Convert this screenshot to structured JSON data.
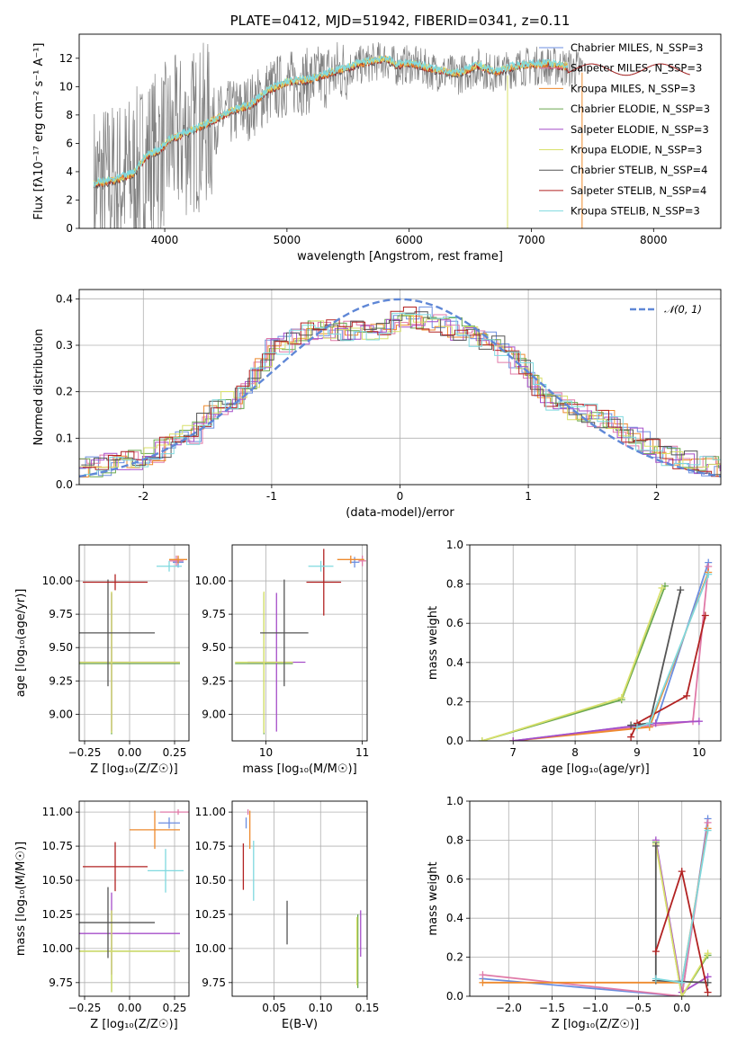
{
  "colors": {
    "chabrier_miles": "#6b8ee0",
    "salpeter_miles": "#e07aa8",
    "kroupa_miles": "#ee8a2e",
    "chabrier_elodie": "#6aa84f",
    "salpeter_elodie": "#a64fc9",
    "kroupa_elodie": "#d8e06a",
    "chabrier_stelib": "#555555",
    "salpeter_stelib": "#b22222",
    "kroupa_stelib": "#7fd9df",
    "gaussian": "#5f87d6",
    "grid": "#b0b0b0"
  },
  "chart_data": [
    {
      "id": "spectrum",
      "type": "line",
      "title": "PLATE=0412, MJD=51942, FIBERID=0341, z=0.11",
      "xlabel": "wavelength [Angstrom, rest frame]",
      "ylabel": "Flux [fλ10⁻¹⁷ erg cm⁻² s⁻¹ A⁻¹]",
      "xlim": [
        3300,
        8550
      ],
      "ylim": [
        0,
        13.7
      ],
      "xticks": [
        4000,
        5000,
        6000,
        7000,
        8000
      ],
      "yticks": [
        0,
        2,
        4,
        6,
        8,
        10,
        12
      ],
      "grid": false,
      "legend_placement": "upper-right",
      "continuum": {
        "x": [
          3420,
          3600,
          3750,
          3850,
          3950,
          4050,
          4200,
          4350,
          4500,
          4700,
          4860,
          5000,
          5200,
          5400,
          5600,
          5800,
          5900,
          6000,
          6200,
          6400,
          6560,
          6700,
          6900,
          7100,
          7300
        ],
        "y": [
          3.0,
          3.3,
          3.8,
          5.0,
          5.4,
          6.2,
          6.7,
          7.3,
          8.0,
          8.6,
          9.7,
          10.2,
          10.4,
          11.0,
          11.5,
          11.9,
          11.4,
          11.6,
          11.1,
          10.8,
          11.4,
          10.9,
          11.4,
          11.5,
          11.3
        ]
      },
      "series": [
        {
          "name": "Chabrier MILES, N_SSP=3",
          "color_key": "chabrier_miles"
        },
        {
          "name": "Salpeter MILES, N_SSP=3",
          "color_key": "salpeter_miles"
        },
        {
          "name": "Kroupa MILES, N_SSP=3",
          "color_key": "kroupa_miles"
        },
        {
          "name": "Chabrier ELODIE, N_SSP=3",
          "color_key": "chabrier_elodie"
        },
        {
          "name": "Salpeter ELODIE, N_SSP=3",
          "color_key": "salpeter_elodie"
        },
        {
          "name": "Kroupa ELODIE, N_SSP=3",
          "color_key": "kroupa_elodie"
        },
        {
          "name": "Chabrier STELIB, N_SSP=4",
          "color_key": "chabrier_stelib"
        },
        {
          "name": "Salpeter STELIB, N_SSP=4",
          "color_key": "salpeter_stelib"
        },
        {
          "name": "Kroupa STELIB, N_SSP=3",
          "color_key": "kroupa_stelib"
        }
      ]
    },
    {
      "id": "residuals",
      "type": "line",
      "xlabel": "(data-model)/error",
      "ylabel": "Normed distribution",
      "xlim": [
        -2.5,
        2.5
      ],
      "ylim": [
        0,
        0.42
      ],
      "xticks": [
        -2,
        -1,
        0,
        1,
        2
      ],
      "yticks": [
        0.0,
        0.1,
        0.2,
        0.3,
        0.4
      ],
      "grid": true,
      "legend_placement": "upper-right",
      "gaussian_label": "𝒩(0, 1)",
      "histogram_bins": [
        -2.5,
        2.5
      ],
      "histogram_envelope_x": [
        -2.5,
        -2.2,
        -2.0,
        -1.8,
        -1.6,
        -1.4,
        -1.2,
        -1.0,
        -0.8,
        -0.6,
        -0.4,
        -0.2,
        0.0,
        0.2,
        0.4,
        0.6,
        0.8,
        1.0,
        1.2,
        1.4,
        1.6,
        1.8,
        2.0,
        2.2,
        2.5
      ],
      "histogram_envelope_y": [
        0.03,
        0.05,
        0.06,
        0.08,
        0.11,
        0.17,
        0.19,
        0.29,
        0.32,
        0.34,
        0.33,
        0.33,
        0.36,
        0.36,
        0.34,
        0.32,
        0.29,
        0.24,
        0.18,
        0.16,
        0.14,
        0.11,
        0.07,
        0.05,
        0.04
      ]
    },
    {
      "id": "age_vs_Z",
      "type": "scatter",
      "xlabel": "Z [log₁₀(Z/Z☉)]",
      "ylabel": "age  [log₁₀(age/yr)]",
      "xlim": [
        -0.28,
        0.33
      ],
      "ylim": [
        8.8,
        10.27
      ],
      "xticks": [
        -0.25,
        0.0,
        0.25
      ],
      "xticklabels": [
        "−0.25",
        "0.00",
        "0.25"
      ],
      "yticks": [
        9.0,
        9.25,
        9.5,
        9.75,
        10.0
      ],
      "yticklabels": [
        "9.00",
        "9.25",
        "9.50",
        "9.75",
        "10.00"
      ],
      "grid": true,
      "points": [
        {
          "key": "chabrier_miles",
          "x": 0.27,
          "y": 10.14,
          "xe": 0.03,
          "ye": 0.04
        },
        {
          "key": "salpeter_miles",
          "x": 0.26,
          "y": 10.15,
          "xe": 0.04,
          "ye": 0.04
        },
        {
          "key": "kroupa_miles",
          "x": 0.27,
          "y": 10.16,
          "xe": 0.05,
          "ye": 0.03
        },
        {
          "key": "chabrier_elodie",
          "x": -0.1,
          "y": 9.38,
          "xe": 0.38,
          "ye": 0.53
        },
        {
          "key": "salpeter_elodie",
          "x": -0.1,
          "y": 9.39,
          "xe": 0.38,
          "ye": 0.52
        },
        {
          "key": "kroupa_elodie",
          "x": -0.1,
          "y": 9.39,
          "xe": 0.38,
          "ye": 0.53
        },
        {
          "key": "chabrier_stelib",
          "x": -0.12,
          "y": 9.61,
          "xe": 0.26,
          "ye": 0.4
        },
        {
          "key": "salpeter_stelib",
          "x": -0.08,
          "y": 9.99,
          "xe": 0.18,
          "ye": 0.06
        },
        {
          "key": "kroupa_stelib",
          "x": 0.22,
          "y": 10.11,
          "xe": 0.07,
          "ye": 0.04
        }
      ]
    },
    {
      "id": "age_vs_mass",
      "type": "scatter",
      "xlabel": "mass [log₁₀(M/M☉)]",
      "xlim": [
        9.65,
        11.05
      ],
      "ylim": [
        8.8,
        10.27
      ],
      "xticks": [
        10,
        11
      ],
      "yticks": [
        9.0,
        9.25,
        9.5,
        9.75,
        10.0
      ],
      "yticklabels": [
        "9.00",
        "9.25",
        "9.50",
        "9.75",
        "10.00"
      ],
      "grid": true,
      "points": [
        {
          "key": "chabrier_miles",
          "x": 10.92,
          "y": 10.14,
          "xe": 0.05,
          "ye": 0.04
        },
        {
          "key": "salpeter_miles",
          "x": 11.0,
          "y": 10.15,
          "xe": 0.04,
          "ye": 0.04
        },
        {
          "key": "kroupa_miles",
          "x": 10.88,
          "y": 10.16,
          "xe": 0.14,
          "ye": 0.03
        },
        {
          "key": "chabrier_elodie",
          "x": 9.98,
          "y": 9.38,
          "xe": 0.3,
          "ye": 0.53
        },
        {
          "key": "salpeter_elodie",
          "x": 10.11,
          "y": 9.39,
          "xe": 0.3,
          "ye": 0.52
        },
        {
          "key": "kroupa_elodie",
          "x": 9.98,
          "y": 9.39,
          "xe": 0.3,
          "ye": 0.53
        },
        {
          "key": "chabrier_stelib",
          "x": 10.19,
          "y": 9.61,
          "xe": 0.25,
          "ye": 0.4
        },
        {
          "key": "salpeter_stelib",
          "x": 10.6,
          "y": 9.99,
          "xe": 0.18,
          "ye": 0.25
        },
        {
          "key": "kroupa_stelib",
          "x": 10.57,
          "y": 10.11,
          "xe": 0.13,
          "ye": 0.04
        }
      ]
    },
    {
      "id": "mass_weight_vs_age",
      "type": "line",
      "xlabel": "age  [log₁₀(age/yr)]",
      "ylabel": "mass weight",
      "xlim": [
        6.3,
        10.35
      ],
      "ylim": [
        0,
        1.0
      ],
      "xticks": [
        7,
        8,
        9,
        10
      ],
      "yticks": [
        0.0,
        0.2,
        0.4,
        0.6,
        0.8,
        1.0
      ],
      "grid": true,
      "series": [
        {
          "key": "chabrier_miles",
          "x": [
            7.0,
            9.3,
            10.15
          ],
          "y": [
            0.0,
            0.09,
            0.91
          ]
        },
        {
          "key": "salpeter_miles",
          "x": [
            7.0,
            9.9,
            10.15
          ],
          "y": [
            0.0,
            0.1,
            0.89
          ]
        },
        {
          "key": "kroupa_miles",
          "x": [
            7.0,
            9.2,
            10.15
          ],
          "y": [
            0.0,
            0.07,
            0.86
          ]
        },
        {
          "key": "chabrier_elodie",
          "x": [
            6.5,
            8.75,
            9.45
          ],
          "y": [
            0.0,
            0.21,
            0.79
          ]
        },
        {
          "key": "salpeter_elodie",
          "x": [
            7.0,
            9.3,
            10.0
          ],
          "y": [
            0.0,
            0.09,
            0.1
          ]
        },
        {
          "key": "kroupa_elodie",
          "x": [
            6.5,
            8.75,
            9.4
          ],
          "y": [
            0.0,
            0.22,
            0.78
          ]
        },
        {
          "key": "chabrier_stelib",
          "x": [
            8.9,
            9.2,
            9.7
          ],
          "y": [
            0.08,
            0.09,
            0.77
          ]
        },
        {
          "key": "salpeter_stelib",
          "x": [
            8.9,
            9.0,
            9.8,
            10.1
          ],
          "y": [
            0.02,
            0.09,
            0.23,
            0.64
          ]
        },
        {
          "key": "kroupa_stelib",
          "x": [
            9.0,
            9.2,
            10.15
          ],
          "y": [
            0.07,
            0.09,
            0.85
          ]
        }
      ]
    },
    {
      "id": "mass_vs_Z",
      "type": "scatter",
      "xlabel": "Z [log₁₀(Z/Z☉)]",
      "ylabel": "mass [log₁₀(M/M☉)]",
      "xlim": [
        -0.28,
        0.33
      ],
      "ylim": [
        9.65,
        11.08
      ],
      "xticks": [
        -0.25,
        0.0,
        0.25
      ],
      "xticklabels": [
        "−0.25",
        "0.00",
        "0.25"
      ],
      "yticks": [
        9.75,
        10.0,
        10.25,
        10.5,
        10.75,
        11.0
      ],
      "yticklabels": [
        "9.75",
        "10.00",
        "10.25",
        "10.50",
        "10.75",
        "11.00"
      ],
      "grid": true,
      "points": [
        {
          "key": "chabrier_miles",
          "x": 0.22,
          "y": 10.92,
          "xe": 0.06,
          "ye": 0.04
        },
        {
          "key": "salpeter_miles",
          "x": 0.27,
          "y": 11.0,
          "xe": 0.1,
          "ye": 0.02
        },
        {
          "key": "kroupa_miles",
          "x": 0.14,
          "y": 10.87,
          "xe": 0.14,
          "ye": 0.14
        },
        {
          "key": "chabrier_elodie",
          "x": -0.1,
          "y": 9.98,
          "xe": 0.38,
          "ye": 0.3
        },
        {
          "key": "salpeter_elodie",
          "x": -0.1,
          "y": 10.11,
          "xe": 0.38,
          "ye": 0.3
        },
        {
          "key": "kroupa_elodie",
          "x": -0.1,
          "y": 9.98,
          "xe": 0.38,
          "ye": 0.3
        },
        {
          "key": "chabrier_stelib",
          "x": -0.12,
          "y": 10.19,
          "xe": 0.26,
          "ye": 0.26
        },
        {
          "key": "salpeter_stelib",
          "x": -0.08,
          "y": 10.6,
          "xe": 0.18,
          "ye": 0.18
        },
        {
          "key": "kroupa_stelib",
          "x": 0.2,
          "y": 10.57,
          "xe": 0.1,
          "ye": 0.16
        }
      ]
    },
    {
      "id": "mass_vs_EBV",
      "type": "scatter",
      "xlabel": "E(B-V)",
      "xlim": [
        0.005,
        0.15
      ],
      "ylim": [
        9.65,
        11.08
      ],
      "xticks": [
        0.05,
        0.1,
        0.15
      ],
      "xticklabels": [
        "0.05",
        "0.10",
        "0.15"
      ],
      "yticks": [
        9.75,
        10.0,
        10.25,
        10.5,
        10.75,
        11.0
      ],
      "yticklabels": [
        "9.75",
        "10.00",
        "10.25",
        "10.50",
        "10.75",
        "11.00"
      ],
      "grid": true,
      "points": [
        {
          "key": "chabrier_miles",
          "x": 0.02,
          "y": 10.92,
          "xe": 0.0,
          "ye": 0.04
        },
        {
          "key": "salpeter_miles",
          "x": 0.022,
          "y": 11.0,
          "xe": 0.0,
          "ye": 0.02
        },
        {
          "key": "kroupa_miles",
          "x": 0.024,
          "y": 10.87,
          "xe": 0.0,
          "ye": 0.14
        },
        {
          "key": "chabrier_elodie",
          "x": 0.14,
          "y": 9.98,
          "xe": 0.0,
          "ye": 0.27
        },
        {
          "key": "salpeter_elodie",
          "x": 0.143,
          "y": 10.11,
          "xe": 0.0,
          "ye": 0.17
        },
        {
          "key": "kroupa_elodie",
          "x": 0.139,
          "y": 9.98,
          "xe": 0.0,
          "ye": 0.25
        },
        {
          "key": "chabrier_stelib",
          "x": 0.064,
          "y": 10.19,
          "xe": 0.0,
          "ye": 0.16
        },
        {
          "key": "salpeter_stelib",
          "x": 0.017,
          "y": 10.6,
          "xe": 0.0,
          "ye": 0.17
        },
        {
          "key": "kroupa_stelib",
          "x": 0.028,
          "y": 10.57,
          "xe": 0.0,
          "ye": 0.22
        }
      ]
    },
    {
      "id": "mass_weight_vs_Z",
      "type": "line",
      "xlabel": "Z [log₁₀(Z/Z☉)]",
      "ylabel": "mass weight",
      "xlim": [
        -2.45,
        0.45
      ],
      "ylim": [
        0,
        1.0
      ],
      "xticks": [
        -2.0,
        -1.5,
        -1.0,
        -0.5,
        0.0
      ],
      "xticklabels": [
        "−2.0",
        "−1.5",
        "−1.0",
        "−0.5",
        "0.0"
      ],
      "yticks": [
        0.0,
        0.2,
        0.4,
        0.6,
        0.8,
        1.0
      ],
      "grid": true,
      "series": [
        {
          "key": "chabrier_miles",
          "x": [
            -2.3,
            0.0,
            0.3
          ],
          "y": [
            0.09,
            0.0,
            0.91
          ]
        },
        {
          "key": "salpeter_miles",
          "x": [
            -2.3,
            0.0,
            0.3
          ],
          "y": [
            0.11,
            0.0,
            0.89
          ]
        },
        {
          "key": "kroupa_miles",
          "x": [
            -2.3,
            0.0,
            0.3
          ],
          "y": [
            0.07,
            0.07,
            0.86
          ]
        },
        {
          "key": "chabrier_elodie",
          "x": [
            -0.3,
            0.0,
            0.3
          ],
          "y": [
            0.79,
            0.0,
            0.21
          ]
        },
        {
          "key": "salpeter_elodie",
          "x": [
            -0.3,
            0.0,
            0.3
          ],
          "y": [
            0.8,
            0.02,
            0.1
          ]
        },
        {
          "key": "kroupa_elodie",
          "x": [
            -0.3,
            0.0,
            0.3
          ],
          "y": [
            0.78,
            0.0,
            0.22
          ]
        },
        {
          "key": "chabrier_stelib",
          "x": [
            -0.3,
            -0.3,
            0.3
          ],
          "y": [
            0.77,
            0.08,
            0.07
          ]
        },
        {
          "key": "salpeter_stelib",
          "x": [
            -0.3,
            0.0,
            0.3
          ],
          "y": [
            0.23,
            0.64,
            0.02
          ]
        },
        {
          "key": "kroupa_stelib",
          "x": [
            -0.3,
            0.0,
            0.3
          ],
          "y": [
            0.09,
            0.07,
            0.85
          ]
        }
      ]
    }
  ]
}
